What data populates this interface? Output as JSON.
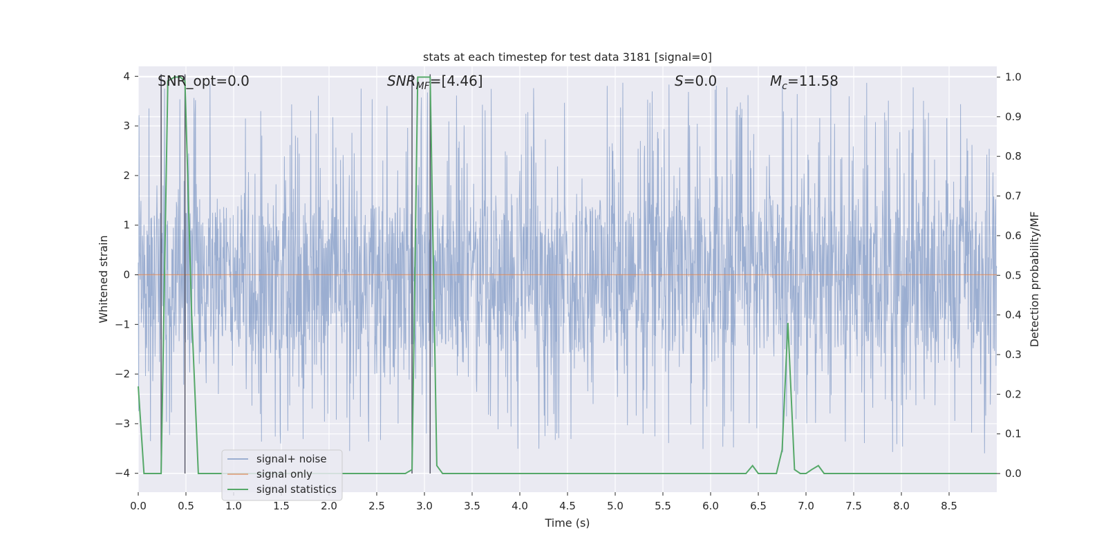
{
  "chart_data": {
    "type": "line",
    "title": "stats at each timestep for test data 3181 [signal=0]",
    "xlabel": "Time (s)",
    "ylabel_left": "Whitened strain",
    "ylabel_right": "Detection probability/MF",
    "xlim": [
      0.0,
      9.0
    ],
    "ylim_left": [
      -4.38,
      4.2
    ],
    "ylim_right": [
      -0.047,
      1.027
    ],
    "xticks": [
      "0.0",
      "0.5",
      "1.0",
      "1.5",
      "2.0",
      "2.5",
      "3.0",
      "3.5",
      "4.0",
      "4.5",
      "5.0",
      "5.5",
      "6.0",
      "6.5",
      "7.0",
      "7.5",
      "8.0",
      "8.5"
    ],
    "yticks_left": [
      "4",
      "3",
      "2",
      "1",
      "0",
      "−1",
      "−2",
      "−3",
      "−4"
    ],
    "yticks_right": [
      "1.0",
      "0.9",
      "0.8",
      "0.7",
      "0.6",
      "0.5",
      "0.4",
      "0.3",
      "0.2",
      "0.1",
      "0.0"
    ],
    "grid": true,
    "legend_position": "lower-left",
    "legend": [
      "signal+ noise",
      "signal only",
      "signal statistics"
    ],
    "colors": {
      "background": "#eaeaf2",
      "grid": "#ffffff",
      "noise": "#4c72b0",
      "signal": "#dd8452",
      "stats": "#55a868",
      "markers": "#555566"
    },
    "annotations": {
      "snr_opt": "SNR_opt=0.0",
      "snr_mf_base": "SNR",
      "snr_mf_sub": "MF",
      "snr_mf_value": "=[4.46]",
      "s_label": "S",
      "s_value": "=0.0",
      "mc_base": "M",
      "mc_sub": "c",
      "mc_value": "=11.58"
    },
    "noise_envelope": {
      "time_step": 0.004,
      "core_range": [
        -1.5,
        1.4
      ],
      "peak_max": 3.88,
      "trough_min": -3.6
    },
    "signal_only": {
      "x": [
        0.0,
        9.0
      ],
      "y": [
        0.0,
        0.0
      ]
    },
    "vertical_markers": [
      0.24,
      0.49,
      2.87,
      3.06
    ],
    "series": [
      {
        "name": "signal statistics",
        "axis": "right",
        "x": [
          0.0,
          0.06,
          0.24,
          0.31,
          0.38,
          0.44,
          0.49,
          0.56,
          0.63,
          0.69,
          2.8,
          2.87,
          2.93,
          3.0,
          3.06,
          3.13,
          3.19,
          6.37,
          6.44,
          6.5,
          6.69,
          6.75,
          6.81,
          6.88,
          6.94,
          7.0,
          7.06,
          7.13,
          7.19,
          7.25,
          9.0
        ],
        "y": [
          0.22,
          0.0,
          0.0,
          0.99,
          1.0,
          1.0,
          0.99,
          0.4,
          0.0,
          0.0,
          0.0,
          0.01,
          1.0,
          1.0,
          1.0,
          0.02,
          0.0,
          0.0,
          0.02,
          0.0,
          0.0,
          0.06,
          0.38,
          0.01,
          0.0,
          0.0,
          0.01,
          0.02,
          0.0,
          0.0,
          0.0
        ]
      }
    ]
  }
}
